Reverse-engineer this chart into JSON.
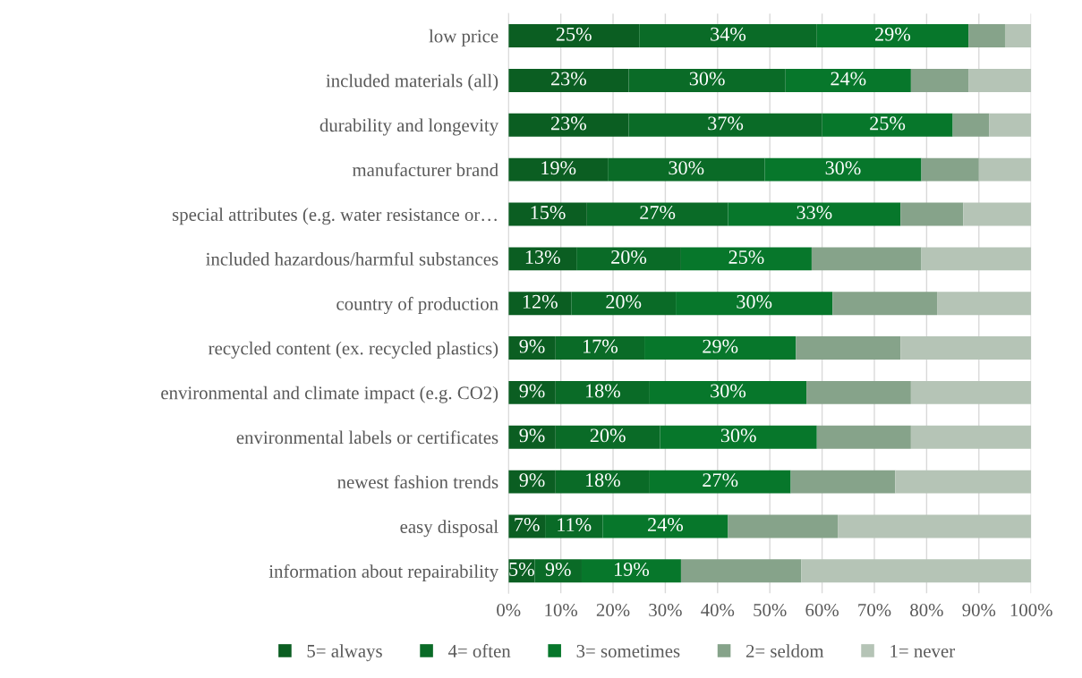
{
  "chart_data": {
    "type": "bar",
    "orientation": "horizontal",
    "stacked": true,
    "categories": [
      "low price",
      "included materials (all)",
      "durability and longevity",
      "manufacturer brand",
      "special attributes (e.g. water resistance or…",
      "included hazardous/harmful substances",
      "country of production",
      "recycled content (ex. recycled plastics)",
      "environmental and climate impact (e.g. CO2)",
      "environmental labels or certificates",
      "newest fashion trends",
      "easy disposal",
      "information about repairability"
    ],
    "series": [
      {
        "name": "5= always",
        "color": "#0b5e22",
        "values": [
          25,
          23,
          23,
          19,
          15,
          13,
          12,
          9,
          9,
          9,
          9,
          7,
          5
        ],
        "value_labels": [
          "25%",
          "23%",
          "23%",
          "19%",
          "15%",
          "13%",
          "12%",
          "9%",
          "9%",
          "9%",
          "9%",
          "7%",
          "5%"
        ]
      },
      {
        "name": "4= often",
        "color": "#0a6b27",
        "values": [
          34,
          30,
          37,
          30,
          27,
          20,
          20,
          17,
          18,
          20,
          18,
          11,
          9
        ],
        "value_labels": [
          "34%",
          "30%",
          "37%",
          "30%",
          "27%",
          "20%",
          "20%",
          "17%",
          "18%",
          "20%",
          "18%",
          "11%",
          "9%"
        ]
      },
      {
        "name": "3= sometimes",
        "color": "#07772b",
        "values": [
          29,
          24,
          25,
          30,
          33,
          25,
          30,
          29,
          30,
          30,
          27,
          24,
          19
        ],
        "value_labels": [
          "29%",
          "24%",
          "25%",
          "30%",
          "33%",
          "25%",
          "30%",
          "29%",
          "30%",
          "30%",
          "27%",
          "24%",
          "19%"
        ]
      },
      {
        "name": "2= seldom",
        "color": "#86a38a",
        "values": [
          7,
          11,
          7,
          11,
          12,
          21,
          20,
          20,
          20,
          18,
          20,
          21,
          23
        ],
        "value_labels": [
          null,
          null,
          null,
          null,
          null,
          null,
          null,
          null,
          null,
          null,
          null,
          null,
          null
        ]
      },
      {
        "name": "1= never",
        "color": "#b5c4b6",
        "values": [
          5,
          12,
          8,
          10,
          13,
          21,
          18,
          25,
          23,
          23,
          26,
          37,
          44
        ],
        "value_labels": [
          null,
          null,
          null,
          null,
          null,
          null,
          null,
          null,
          null,
          null,
          null,
          null,
          null
        ]
      }
    ],
    "xlim": [
      0,
      100
    ],
    "xticks": [
      {
        "value": 0,
        "label": "0%"
      },
      {
        "value": 10,
        "label": "10%"
      },
      {
        "value": 20,
        "label": "20%"
      },
      {
        "value": 30,
        "label": "30%"
      },
      {
        "value": 40,
        "label": "40%"
      },
      {
        "value": 50,
        "label": "50%"
      },
      {
        "value": 60,
        "label": "60%"
      },
      {
        "value": 70,
        "label": "70%"
      },
      {
        "value": 80,
        "label": "80%"
      },
      {
        "value": 90,
        "label": "90%"
      },
      {
        "value": 100,
        "label": "100%"
      }
    ],
    "grid": "x",
    "legend": "bottom"
  }
}
